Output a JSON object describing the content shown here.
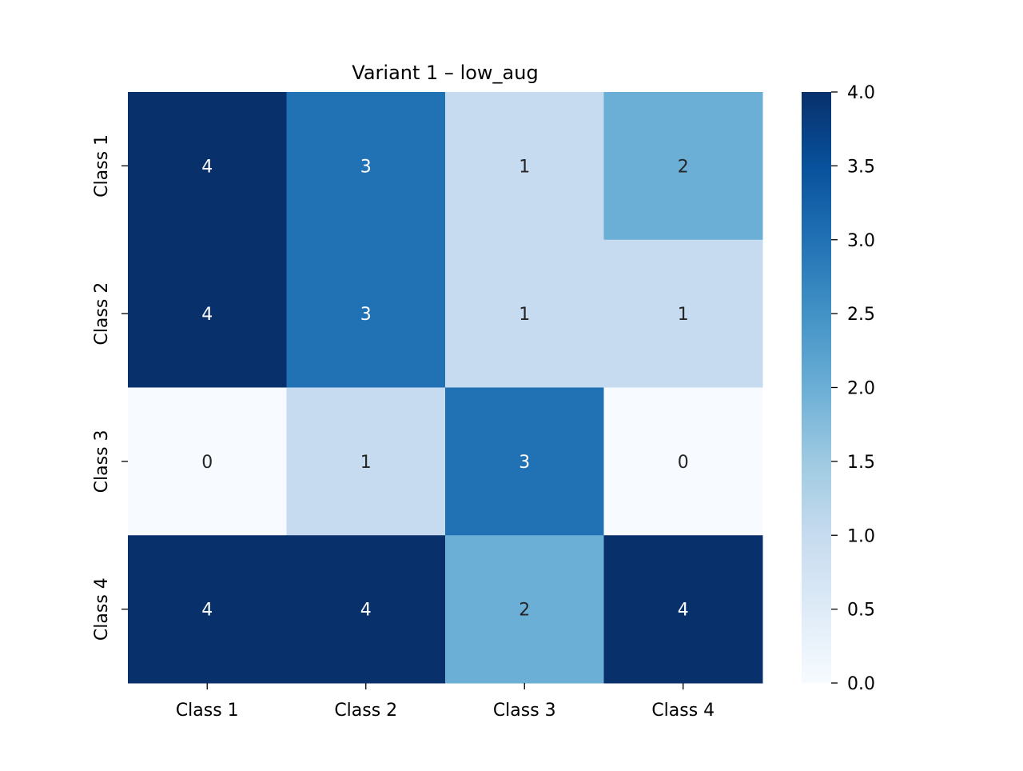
{
  "chart_data": {
    "type": "heatmap",
    "title": "Variant 1 – low_aug",
    "xlabel": "",
    "ylabel": "",
    "x_categories": [
      "Class 1",
      "Class 2",
      "Class 3",
      "Class 4"
    ],
    "y_categories": [
      "Class 1",
      "Class 2",
      "Class 3",
      "Class 4"
    ],
    "values": [
      [
        4,
        3,
        1,
        2
      ],
      [
        4,
        3,
        1,
        1
      ],
      [
        0,
        1,
        3,
        0
      ],
      [
        4,
        4,
        2,
        4
      ]
    ],
    "vmin": 0,
    "vmax": 4,
    "colormap": "Blues",
    "colorbar": {
      "ticks": [
        "0.0",
        "0.5",
        "1.0",
        "1.5",
        "2.0",
        "2.5",
        "3.0",
        "3.5",
        "4.0"
      ]
    },
    "annotations": true
  }
}
